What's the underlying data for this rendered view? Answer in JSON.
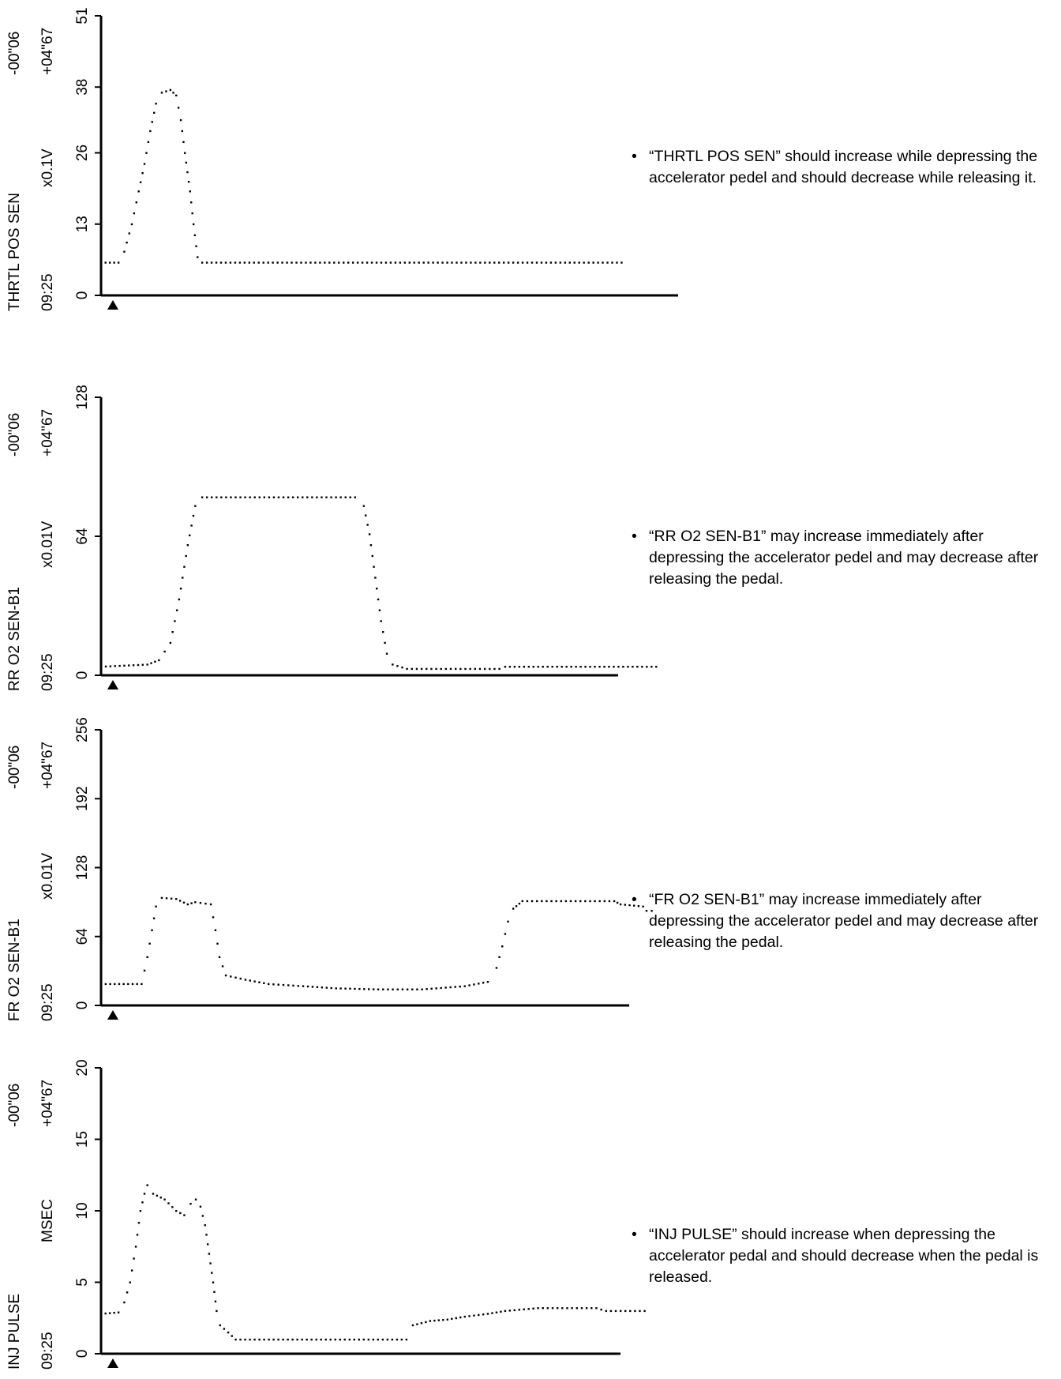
{
  "charts_meta": {
    "time_start": "-00\"06",
    "time_end": "+04\"67",
    "clock": "09:25"
  },
  "chart_data": [
    {
      "type": "scatter",
      "title": "THRTL POS SEN",
      "unit": "x0.1V",
      "ylim": [
        0,
        51
      ],
      "yticks": [
        "0",
        "13",
        "26",
        "38",
        "51"
      ],
      "xlim": [
        0,
        100
      ],
      "points": [
        [
          0,
          6
        ],
        [
          3,
          6
        ],
        [
          4,
          8
        ],
        [
          5.3,
          13
        ],
        [
          6.5,
          19
        ],
        [
          7.5,
          24
        ],
        [
          8.5,
          30
        ],
        [
          9.5,
          35
        ],
        [
          10.5,
          37
        ],
        [
          12,
          37.5
        ],
        [
          13,
          36.5
        ],
        [
          13.8,
          32
        ],
        [
          14.5,
          26
        ],
        [
          15.4,
          19
        ],
        [
          16,
          13
        ],
        [
          16.7,
          7
        ],
        [
          17.5,
          6
        ],
        [
          91,
          6
        ]
      ],
      "note": "“THRTL POS SEN” should increase while depressing the accelerator pedel and should decrease while releasing it."
    },
    {
      "type": "scatter",
      "title": "RR O2 SEN-B1",
      "unit": "x0.01V",
      "ylim": [
        0,
        128
      ],
      "yticks": [
        "0",
        "64",
        "128"
      ],
      "xlim": [
        0,
        100
      ],
      "points": [
        [
          0,
          4
        ],
        [
          8,
          5
        ],
        [
          10,
          7
        ],
        [
          12,
          15
        ],
        [
          13.5,
          35
        ],
        [
          15,
          60
        ],
        [
          16.3,
          78
        ],
        [
          17.5,
          82
        ],
        [
          44,
          82
        ],
        [
          45.5,
          78
        ],
        [
          46.5,
          65
        ],
        [
          47.5,
          45
        ],
        [
          48.5,
          25
        ],
        [
          49.5,
          10
        ],
        [
          50.5,
          5
        ],
        [
          53,
          3
        ],
        [
          69,
          3
        ],
        [
          70,
          4
        ],
        [
          97,
          4
        ]
      ],
      "note": "“RR O2 SEN-B1” may increase immediately after depressing the accelerator pedel and may decrease after releasing the pedal."
    },
    {
      "type": "scatter",
      "title": "FR O2 SEN-B1",
      "unit": "x0.01V",
      "ylim": [
        0,
        256
      ],
      "yticks": [
        "0",
        "64",
        "128",
        "192",
        "256"
      ],
      "xlim": [
        0,
        100
      ],
      "points": [
        [
          0,
          20
        ],
        [
          7,
          20
        ],
        [
          8,
          45
        ],
        [
          8.8,
          70
        ],
        [
          9.5,
          92
        ],
        [
          10.5,
          100
        ],
        [
          13,
          99
        ],
        [
          15,
          94
        ],
        [
          16.3,
          96
        ],
        [
          19,
          94
        ],
        [
          19.8,
          70
        ],
        [
          20.5,
          45
        ],
        [
          21.6,
          28
        ],
        [
          25,
          24
        ],
        [
          29,
          20
        ],
        [
          35,
          18
        ],
        [
          40.7,
          16
        ],
        [
          48,
          15
        ],
        [
          55.6,
          15
        ],
        [
          63,
          18
        ],
        [
          67,
          22
        ],
        [
          68.5,
          35
        ],
        [
          69.5,
          55
        ],
        [
          70.5,
          78
        ],
        [
          71.4,
          90
        ],
        [
          73,
          97
        ],
        [
          88.9,
          97
        ],
        [
          90,
          94
        ],
        [
          93.9,
          92
        ],
        [
          94.5,
          88
        ],
        [
          96.3,
          88
        ]
      ],
      "note": "“FR O2 SEN-B1” may increase immediately after depressing the accelerator pedel and may decrease after releasing the pedal."
    },
    {
      "type": "scatter",
      "title": "INJ PULSE",
      "unit": "MSEC",
      "ylim": [
        0,
        20
      ],
      "yticks": [
        "0",
        "5",
        "10",
        "15",
        "20"
      ],
      "xlim": [
        0,
        100
      ],
      "points": [
        [
          0,
          2.8
        ],
        [
          3,
          2.9
        ],
        [
          4,
          3.6
        ],
        [
          5,
          5
        ],
        [
          6,
          7.5
        ],
        [
          6.8,
          10
        ],
        [
          7.5,
          11.2
        ],
        [
          8,
          11.8
        ],
        [
          9,
          11.2
        ],
        [
          11,
          10.8
        ],
        [
          13,
          10
        ],
        [
          14.4,
          9.7
        ],
        [
          15.5,
          10.5
        ],
        [
          16.4,
          10.8
        ],
        [
          17.2,
          10.3
        ],
        [
          18,
          9
        ],
        [
          18.7,
          7
        ],
        [
          19.4,
          5
        ],
        [
          20,
          3
        ],
        [
          20.6,
          2
        ],
        [
          22,
          1.5
        ],
        [
          23.3,
          1
        ],
        [
          52.9,
          1
        ],
        [
          54,
          2
        ],
        [
          57,
          2.3
        ],
        [
          60,
          2.4
        ],
        [
          63,
          2.6
        ],
        [
          67,
          2.8
        ],
        [
          70,
          3
        ],
        [
          75.7,
          3.2
        ],
        [
          85.8,
          3.2
        ],
        [
          87.5,
          3
        ],
        [
          95,
          3
        ]
      ],
      "note": "“INJ PULSE” should increase when depressing the accelerator pedal and should decrease when the pedal is released."
    }
  ]
}
